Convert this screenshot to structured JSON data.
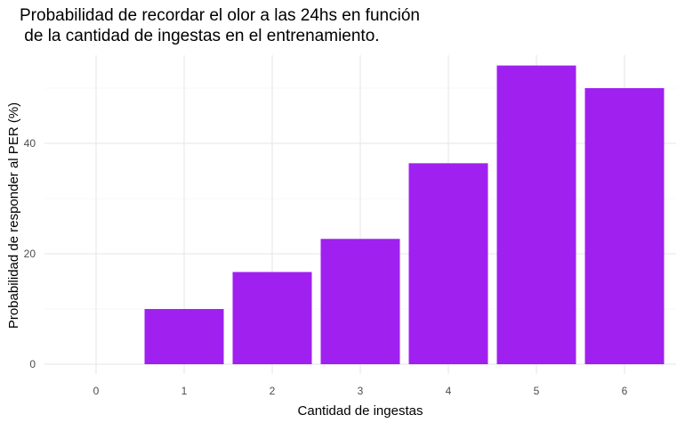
{
  "chart_data": {
    "type": "bar",
    "title": "Probabilidad de recordar el olor a las 24hs en función\n de la cantidad de ingestas en el entrenamiento.",
    "xlabel": "Cantidad de ingestas",
    "ylabel": "Probabilidad de responder al PER (%)",
    "categories": [
      "0",
      "1",
      "2",
      "3",
      "4",
      "5",
      "6"
    ],
    "values": [
      0,
      10,
      16.7,
      22.7,
      36.4,
      54.1,
      50
    ],
    "yticks": [
      0,
      20,
      40
    ],
    "ylim": [
      0,
      55
    ],
    "grid": true,
    "bar_color": "#a020f0"
  }
}
